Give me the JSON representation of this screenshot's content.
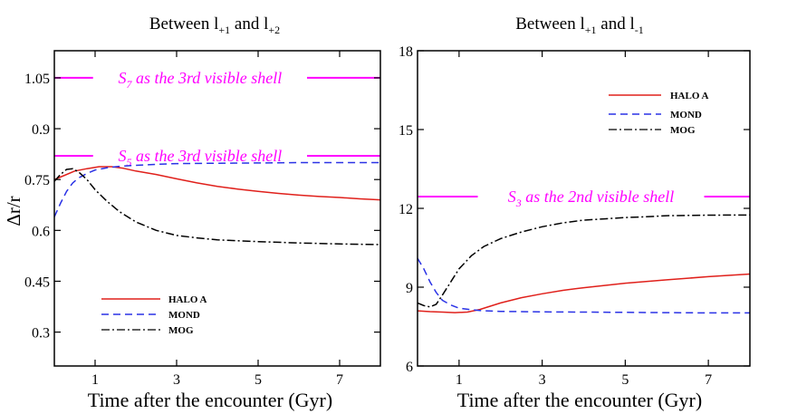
{
  "colors": {
    "halo": "#e0201b",
    "mond": "#2a32e6",
    "mog": "#000000",
    "reference": "#ff00ff",
    "axes": "#000000"
  },
  "chart_data": [
    {
      "type": "line",
      "title_main": "Between l",
      "title_sub1": "+1",
      "title_mid": " and l",
      "title_sub2": "+2",
      "xlabel": "Time after the encounter (Gyr)",
      "ylabel": "Δr/r",
      "xlim": [
        0,
        8
      ],
      "ylim": [
        0.2,
        1.13
      ],
      "xticks": [
        "1",
        "3",
        "5",
        "7"
      ],
      "xtick_values": [
        1,
        3,
        5,
        7
      ],
      "yticks": [
        "0.3",
        "0.45",
        "0.6",
        "0.75",
        "0.9",
        "1.05"
      ],
      "ytick_values": [
        0.3,
        0.45,
        0.6,
        0.75,
        0.9,
        1.05
      ],
      "grid": false,
      "legend_position": "bottom-left",
      "reference_lines": [
        {
          "y": 1.05,
          "label_main": "S",
          "label_sub": "7",
          "label_rest": " as the 3rd visible shell",
          "label_x": [
            0.95,
            6.2
          ]
        },
        {
          "y": 0.82,
          "label_main": "S",
          "label_sub": "5",
          "label_rest": " as the 3rd visible shell",
          "label_x": [
            0.95,
            6.2
          ]
        }
      ],
      "series": [
        {
          "name": "HALO A",
          "style": "solid",
          "color_key": "halo",
          "x": [
            0,
            0.2,
            0.5,
            0.8,
            1.1,
            1.4,
            1.7,
            2.0,
            2.5,
            3.0,
            3.5,
            4.0,
            4.5,
            5.0,
            5.5,
            6.0,
            6.5,
            7.0,
            7.5,
            8.0
          ],
          "y": [
            0.75,
            0.76,
            0.775,
            0.782,
            0.788,
            0.788,
            0.783,
            0.775,
            0.765,
            0.752,
            0.74,
            0.73,
            0.722,
            0.715,
            0.709,
            0.704,
            0.7,
            0.697,
            0.693,
            0.69
          ]
        },
        {
          "name": "MOND",
          "style": "dashed",
          "color_key": "mond",
          "x": [
            0,
            0.15,
            0.3,
            0.45,
            0.6,
            0.8,
            1.0,
            1.3,
            1.6,
            2.0,
            2.5,
            3.0,
            4.0,
            5.0,
            6.0,
            7.0,
            8.0
          ],
          "y": [
            0.64,
            0.68,
            0.715,
            0.74,
            0.755,
            0.768,
            0.778,
            0.785,
            0.789,
            0.792,
            0.795,
            0.797,
            0.798,
            0.799,
            0.8,
            0.8,
            0.8
          ]
        },
        {
          "name": "MOG",
          "style": "dashdot",
          "color_key": "mog",
          "x": [
            0,
            0.15,
            0.3,
            0.45,
            0.6,
            0.8,
            1.0,
            1.3,
            1.6,
            2.0,
            2.5,
            3.0,
            3.5,
            4.0,
            5.0,
            6.0,
            7.0,
            8.0
          ],
          "y": [
            0.745,
            0.765,
            0.78,
            0.782,
            0.772,
            0.75,
            0.72,
            0.685,
            0.655,
            0.625,
            0.6,
            0.585,
            0.578,
            0.572,
            0.567,
            0.563,
            0.56,
            0.558
          ]
        }
      ]
    },
    {
      "type": "line",
      "title_main": "Between l",
      "title_sub1": "+1",
      "title_mid": " and l",
      "title_sub2": "-1",
      "xlabel": "Time after the encounter (Gyr)",
      "ylabel": "",
      "xlim": [
        0,
        8
      ],
      "ylim": [
        6,
        18
      ],
      "xticks": [
        "1",
        "3",
        "5",
        "7"
      ],
      "xtick_values": [
        1,
        3,
        5,
        7
      ],
      "yticks": [
        "6",
        "9",
        "12",
        "15",
        "18"
      ],
      "ytick_values": [
        6,
        9,
        12,
        15,
        18
      ],
      "grid": false,
      "legend_position": "top-right",
      "reference_lines": [
        {
          "y": 12.45,
          "label_main": "S",
          "label_sub": "3",
          "label_rest": " as the 2nd visible shell",
          "label_x": [
            1.45,
            6.9
          ]
        }
      ],
      "series": [
        {
          "name": "HALO A",
          "style": "solid",
          "color_key": "halo",
          "x": [
            0,
            0.3,
            0.6,
            0.9,
            1.2,
            1.5,
            2.0,
            2.5,
            3.0,
            3.5,
            4.0,
            5.0,
            6.0,
            7.0,
            8.0
          ],
          "y": [
            8.1,
            8.07,
            8.05,
            8.03,
            8.05,
            8.15,
            8.4,
            8.6,
            8.75,
            8.88,
            8.98,
            9.15,
            9.28,
            9.4,
            9.5
          ]
        },
        {
          "name": "MOND",
          "style": "dashed",
          "color_key": "mond",
          "x": [
            0,
            0.15,
            0.3,
            0.45,
            0.6,
            0.8,
            1.0,
            1.3,
            1.6,
            2.0,
            3.0,
            4.0,
            5.0,
            6.0,
            7.0,
            8.0
          ],
          "y": [
            10.1,
            9.7,
            9.2,
            8.8,
            8.5,
            8.32,
            8.2,
            8.14,
            8.1,
            8.08,
            8.06,
            8.05,
            8.04,
            8.03,
            8.02,
            8.02
          ]
        },
        {
          "name": "MOG",
          "style": "dashdot",
          "color_key": "mog",
          "x": [
            0,
            0.15,
            0.3,
            0.45,
            0.6,
            0.8,
            1.0,
            1.3,
            1.6,
            2.0,
            2.5,
            3.0,
            3.5,
            4.0,
            4.5,
            5.0,
            5.5,
            6.0,
            7.0,
            8.0
          ],
          "y": [
            8.4,
            8.3,
            8.25,
            8.35,
            8.7,
            9.2,
            9.7,
            10.2,
            10.55,
            10.85,
            11.1,
            11.3,
            11.45,
            11.55,
            11.6,
            11.65,
            11.68,
            11.72,
            11.74,
            11.75
          ]
        }
      ]
    }
  ]
}
